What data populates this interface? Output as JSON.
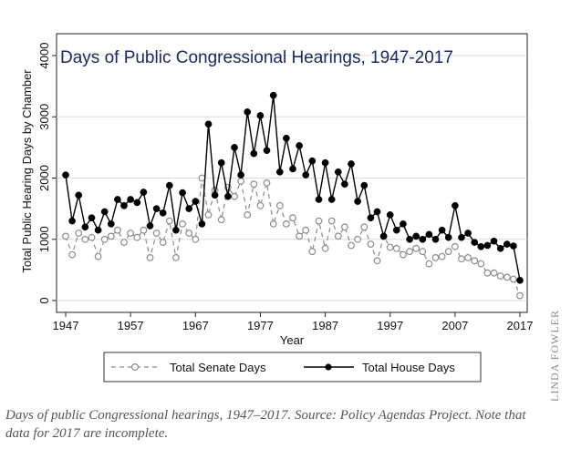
{
  "chart_data": {
    "type": "line",
    "title": "Days of Public Congressional Hearings, 1947-2017",
    "xlabel": "Year",
    "ylabel": "Total Public Hearing Days by Chamber",
    "xlim": [
      1946,
      2018
    ],
    "ylim": [
      0,
      4100
    ],
    "x_ticks": [
      1947,
      1957,
      1967,
      1977,
      1987,
      1997,
      2007,
      2017
    ],
    "y_ticks": [
      0,
      1000,
      2000,
      3000,
      4000
    ],
    "grid": "horizontal",
    "legend_position": "bottom",
    "x": [
      1947,
      1948,
      1949,
      1950,
      1951,
      1952,
      1953,
      1954,
      1955,
      1956,
      1957,
      1958,
      1959,
      1960,
      1961,
      1962,
      1963,
      1964,
      1965,
      1966,
      1967,
      1968,
      1969,
      1970,
      1971,
      1972,
      1973,
      1974,
      1975,
      1976,
      1977,
      1978,
      1979,
      1980,
      1981,
      1982,
      1983,
      1984,
      1985,
      1986,
      1987,
      1988,
      1989,
      1990,
      1991,
      1992,
      1993,
      1994,
      1995,
      1996,
      1997,
      1998,
      1999,
      2000,
      2001,
      2002,
      2003,
      2004,
      2005,
      2006,
      2007,
      2008,
      2009,
      2010,
      2011,
      2012,
      2013,
      2014,
      2015,
      2016,
      2017
    ],
    "series": [
      {
        "name": "Total Senate Days",
        "style": "dashed-hollow",
        "color": "#8c8c8c",
        "values": [
          1050,
          750,
          1100,
          1000,
          1030,
          720,
          1000,
          1050,
          1150,
          950,
          1100,
          1030,
          1150,
          700,
          1100,
          950,
          1300,
          700,
          1250,
          1100,
          1000,
          2000,
          1400,
          1800,
          1320,
          1850,
          1700,
          1950,
          1400,
          1900,
          1550,
          1920,
          1250,
          1550,
          1250,
          1350,
          1050,
          1150,
          800,
          1300,
          850,
          1300,
          1050,
          1200,
          900,
          1000,
          1200,
          920,
          650,
          1050,
          870,
          850,
          750,
          800,
          850,
          800,
          600,
          700,
          720,
          800,
          880,
          680,
          700,
          650,
          600,
          450,
          450,
          400,
          380,
          350,
          80
        ]
      },
      {
        "name": "Total House Days",
        "style": "solid-filled",
        "color": "#000000",
        "values": [
          2050,
          1300,
          1720,
          1200,
          1350,
          1150,
          1450,
          1250,
          1650,
          1550,
          1650,
          1600,
          1770,
          1220,
          1500,
          1430,
          1880,
          1150,
          1760,
          1500,
          1620,
          1250,
          2880,
          1720,
          2250,
          1700,
          2500,
          2050,
          3080,
          2400,
          3020,
          2450,
          3350,
          2100,
          2650,
          2150,
          2530,
          2050,
          2280,
          1650,
          2250,
          1650,
          2100,
          1900,
          2230,
          1620,
          1880,
          1350,
          1450,
          1050,
          1400,
          1150,
          1250,
          1000,
          1050,
          1000,
          1080,
          1000,
          1150,
          1030,
          1550,
          1030,
          1100,
          950,
          880,
          900,
          970,
          850,
          920,
          890,
          330
        ]
      }
    ]
  },
  "caption": "Days of public Congressional hearings, 1947–2017. Source: Policy Agendas Project. Note that data for 2017 are incomplete.",
  "credit": "LINDA FOWLER"
}
